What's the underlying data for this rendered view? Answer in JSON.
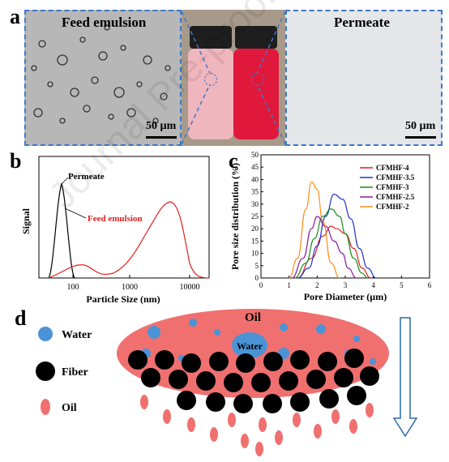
{
  "panel_a": {
    "letter": "a",
    "left_title": "Feed emulsion",
    "right_title": "Permeate",
    "scale_left": "50 µm",
    "scale_right": "50 µm",
    "colors": {
      "dashed": "#3a78c9",
      "pink_vial": "#f0b6bd",
      "red_vial": "#e0183b",
      "cap": "#1e1e1e"
    }
  },
  "panel_b": {
    "letter": "b",
    "ylabel": "Signal",
    "xlabel": "Particle Size (nm)",
    "ticks": [
      "100",
      "1000",
      "10000"
    ],
    "label_permeate": "Permeate",
    "label_feed": "Feed emulsion",
    "colors": {
      "feed": "#e02020",
      "permeate": "#000000"
    }
  },
  "chart_data": {
    "type": "line",
    "xlabel": "Pore Diameter (µm)",
    "ylabel": "Pore size distribution (%)",
    "xlim": [
      0,
      6
    ],
    "ylim": [
      0,
      50
    ],
    "x_ticks": [
      "0",
      "1",
      "2",
      "3",
      "4",
      "5",
      "6"
    ],
    "y_ticks": [
      "0",
      "5",
      "10",
      "15",
      "20",
      "25",
      "30",
      "35",
      "40",
      "45",
      "50"
    ],
    "legend_placement": "top-right",
    "series": [
      {
        "name": "CFMHF-4",
        "color": "#e02020",
        "x": [
          1.3,
          1.8,
          2.2,
          2.5,
          2.7,
          3.0,
          3.3,
          3.6,
          3.9
        ],
        "values": [
          0,
          8,
          17,
          21,
          20,
          18,
          12,
          4,
          0
        ]
      },
      {
        "name": "CFMHF-3.5",
        "color": "#2030d0",
        "x": [
          1.3,
          1.7,
          2.0,
          2.3,
          2.6,
          2.9,
          3.2,
          3.5,
          3.8,
          4.1
        ],
        "values": [
          0,
          4,
          13,
          25,
          34,
          32,
          24,
          12,
          4,
          0
        ]
      },
      {
        "name": "CFMHF-3",
        "color": "#1a8a1a",
        "x": [
          1.2,
          1.6,
          1.9,
          2.2,
          2.5,
          2.8,
          3.0,
          3.3,
          3.6,
          3.8
        ],
        "values": [
          0,
          6,
          16,
          25,
          28,
          25,
          18,
          8,
          2,
          0
        ]
      },
      {
        "name": "CFMHF-2.5",
        "color": "#8a1aa0",
        "x": [
          1.1,
          1.5,
          1.8,
          2.0,
          2.3,
          2.6,
          2.9,
          3.1,
          3.4
        ],
        "values": [
          0,
          8,
          20,
          25,
          21,
          15,
          10,
          4,
          0
        ]
      },
      {
        "name": "CFMHF-2",
        "color": "#ff8c1a",
        "x": [
          1.0,
          1.3,
          1.6,
          1.8,
          2.0,
          2.2,
          2.5,
          2.8
        ],
        "values": [
          0,
          8,
          28,
          39,
          36,
          23,
          6,
          0
        ]
      }
    ]
  },
  "panel_c": {
    "letter": "c"
  },
  "panel_d": {
    "letter": "d",
    "legend": {
      "water": "Water",
      "fiber": "Fiber",
      "oil": "Oil"
    },
    "oil_label": "Oil",
    "water_label": "Water",
    "colors": {
      "water": "#4a93d6",
      "oil": "#f07070",
      "fiber": "#000000"
    }
  },
  "watermark": "Journal Pre-proof"
}
